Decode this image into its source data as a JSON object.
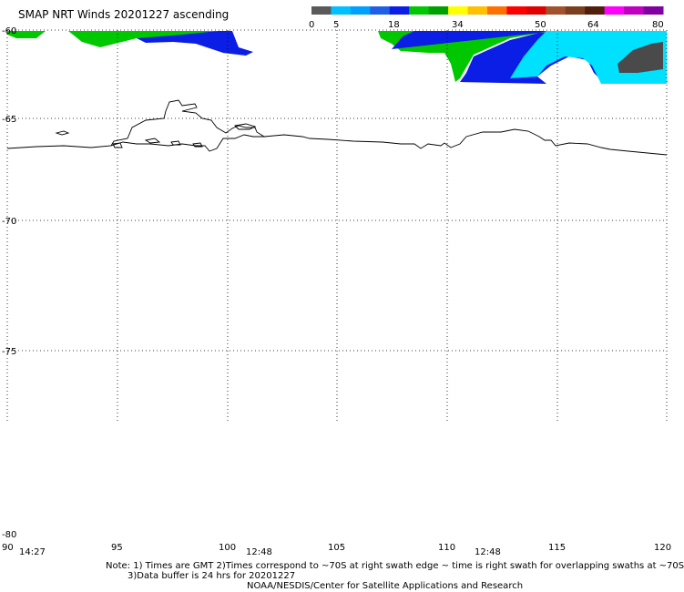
{
  "title": "SMAP NRT Winds 20201227 ascending",
  "legend": {
    "tick_labels": [
      "0",
      "5",
      "18",
      "34",
      "50",
      "64",
      "80"
    ],
    "colors": [
      "#5a5a5a",
      "#00c0ff",
      "#00a0ff",
      "#1e5fe6",
      "#0a1ee6",
      "#00c800",
      "#00a000",
      "#ffff00",
      "#ffc000",
      "#ff7000",
      "#ff0000",
      "#e00000",
      "#a0522d",
      "#7a3f1f",
      "#501e0a",
      "#ff00ff",
      "#c000c0",
      "#8000a0"
    ]
  },
  "map": {
    "lat_labels": [
      "-60",
      "-65",
      "-70",
      "-75",
      "-80"
    ],
    "lon_labels": [
      "90",
      "95",
      "100",
      "105",
      "110",
      "115",
      "120"
    ],
    "time_labels": [
      "14:27",
      "12:48",
      "12:48"
    ],
    "colors": {
      "green": "#00c800",
      "blue": "#0a1ee6",
      "dark_gray": "#4a4a4a",
      "cyan": "#00e0ff"
    }
  },
  "notes": {
    "line1": "Note: 1) Times are GMT  2)Times correspond to ~70S at right swath edge ~ time is right swath for overlapping swaths at ~70S",
    "line2": "3)Data buffer is 24 hrs for 20201227",
    "line3": "NOAA/NESDIS/Center for Satellite Applications and Research"
  }
}
